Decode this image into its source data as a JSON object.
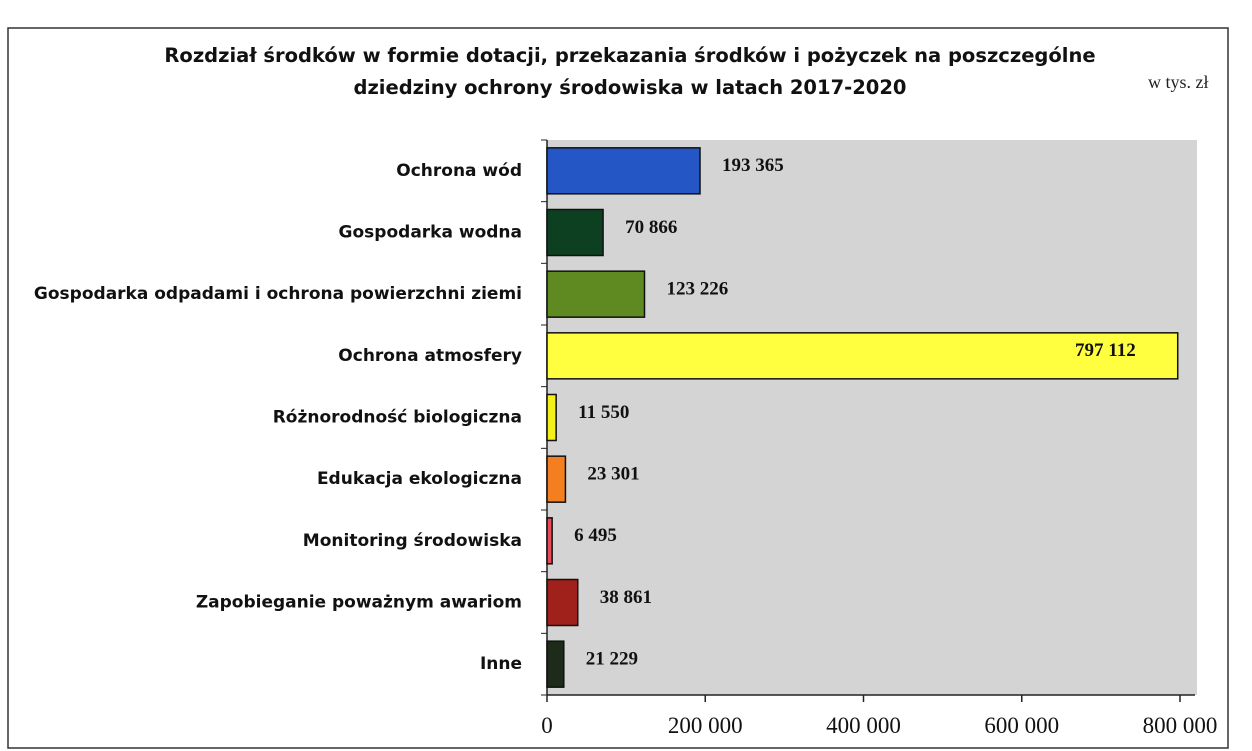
{
  "chart_data": {
    "type": "hbar",
    "title": "Rozdział środków w formie dotacji, przekazania środków i pożyczek na poszczególne dziedziny ochrony środowiska w latach 2017-2020",
    "unit": "w tys. zł",
    "categories": [
      "Ochrona wód",
      "Gospodarka wodna",
      "Gospodarka odpadami i ochrona powierzchni ziemi",
      "Ochrona atmosfery",
      "Różnorodność biologiczna",
      "Edukacja ekologiczna",
      "Monitoring środowiska",
      "Zapobieganie poważnym awariom",
      "Inne"
    ],
    "values": [
      193365,
      70866,
      123226,
      797112,
      11550,
      23301,
      6495,
      38861,
      21229
    ],
    "value_labels": [
      "193 365",
      "70 866",
      "123 226",
      "797 112",
      "11 550",
      "23 301",
      "6 495",
      "38 861",
      "21 229"
    ],
    "colors": [
      "#2457c5",
      "#0d4020",
      "#5f8a22",
      "#ffff40",
      "#f5f01a",
      "#f47f20",
      "#e84a5a",
      "#a0201c",
      "#1e2a1a"
    ],
    "xlim": [
      0,
      800000
    ],
    "xticks": [
      0,
      {
        "value": 200000,
        "label": "200 000"
      },
      {
        "value": 400000,
        "label": "400 000"
      },
      {
        "value": 600000,
        "label": "600 000"
      },
      {
        "value": 800000,
        "label": "800 000"
      }
    ]
  }
}
